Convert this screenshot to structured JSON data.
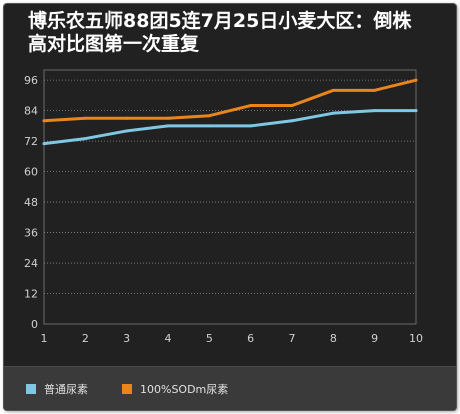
{
  "title_line1": "博乐农五师88团5连7月25日小麦大区：倒株",
  "title_line2": "高对比图第一次重复",
  "colors": {
    "series1": "#7ec8e3",
    "series2": "#e8861e",
    "grid": "#8a8a8a",
    "axis_text": "#d0d0d0"
  },
  "chart_data": {
    "type": "line",
    "title": "博乐农五师88团5连7月25日小麦大区：倒株高对比图第一次重复",
    "x": [
      1,
      2,
      3,
      4,
      5,
      6,
      7,
      8,
      9,
      10
    ],
    "yticks": [
      0,
      12,
      24,
      36,
      48,
      60,
      72,
      84,
      96
    ],
    "ylim": [
      0,
      100
    ],
    "grid": true,
    "legend_position": "bottom-left",
    "series": [
      {
        "name": "普通尿素",
        "values": [
          71,
          73,
          76,
          78,
          78,
          78,
          80,
          83,
          84,
          84
        ]
      },
      {
        "name": "100%SODm尿素",
        "values": [
          80,
          81,
          81,
          81,
          82,
          86,
          86,
          92,
          92,
          96
        ]
      }
    ]
  }
}
